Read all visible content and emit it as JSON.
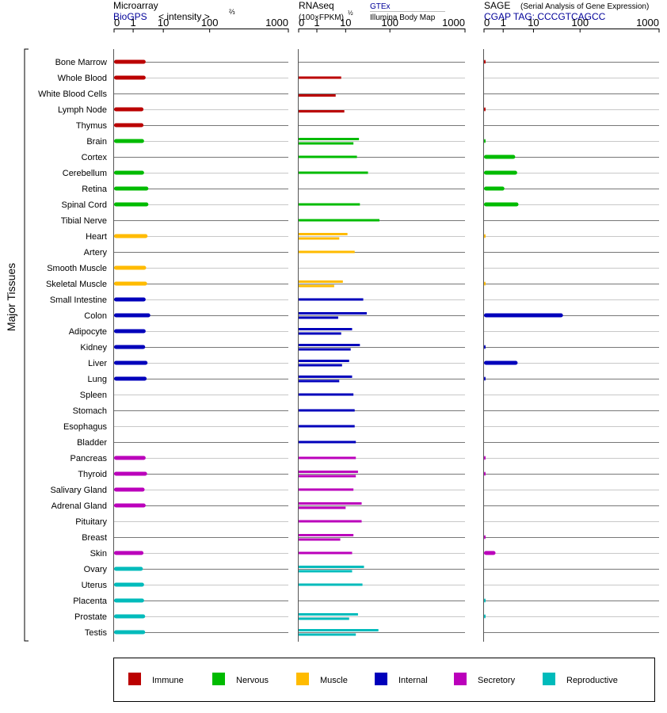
{
  "headers": {
    "microarray": {
      "title": "Microarray",
      "source": "BioGPS",
      "units_main": "< intensity >",
      "units_exp": "⅔"
    },
    "rnaseq": {
      "title": "RNAseq",
      "units_main": "(100×FPKM)",
      "units_exp": "½",
      "source1": "GTEx",
      "source2": "Illumina Body Map"
    },
    "sage": {
      "title": "SAGE",
      "subtitle": "(Serial Analysis of Gene Expression)",
      "tag": "CGAP  TAG: CCCGTCAGCC"
    }
  },
  "axis_ticks": [
    "0",
    "1",
    "10",
    "100",
    "1000"
  ],
  "axis_title": "Major Tissues",
  "categories": {
    "immune": {
      "label": "Immune",
      "color": "#bb0000"
    },
    "nervous": {
      "label": "Nervous",
      "color": "#00bb00"
    },
    "muscle": {
      "label": "Muscle",
      "color": "#ffbb00"
    },
    "internal": {
      "label": "Internal",
      "color": "#0000bb"
    },
    "secretory": {
      "label": "Secretory",
      "color": "#bb00bb"
    },
    "reproductive": {
      "label": "Reproductive",
      "color": "#00bbbb"
    }
  },
  "legend_order": [
    "immune",
    "nervous",
    "muscle",
    "internal",
    "secretory",
    "reproductive"
  ],
  "chart_data": {
    "type": "bar",
    "orientation": "horizontal",
    "scale": "log-like (0, 1, 10, 100, 1000)",
    "xlim": [
      0,
      1000
    ],
    "panels": [
      "Microarray (BioGPS)",
      "RNAseq (GTEx / Illumina Body Map)",
      "SAGE (CGAP)"
    ],
    "tissues": [
      {
        "name": "Bone Marrow",
        "cat": "immune",
        "micro": 2.6,
        "gtex": null,
        "ibm": null,
        "sage": 0.05
      },
      {
        "name": "Whole Blood",
        "cat": "immune",
        "micro": 2.6,
        "gtex": 7,
        "ibm": null,
        "sage": null
      },
      {
        "name": "White Blood Cells",
        "cat": "immune",
        "micro": null,
        "gtex": null,
        "ibm": 4.5,
        "sage": null
      },
      {
        "name": "Lymph Node",
        "cat": "immune",
        "micro": 2.2,
        "gtex": null,
        "ibm": 9,
        "sage": 0.05
      },
      {
        "name": "Thymus",
        "cat": "immune",
        "micro": 2.2,
        "gtex": null,
        "ibm": null,
        "sage": null
      },
      {
        "name": "Brain",
        "cat": "nervous",
        "micro": 2.3,
        "gtex": 20,
        "ibm": 15,
        "sage": 0.05
      },
      {
        "name": "Cortex",
        "cat": "nervous",
        "micro": null,
        "gtex": 18,
        "ibm": null,
        "sage": 2.5
      },
      {
        "name": "Cerebellum",
        "cat": "nervous",
        "micro": 2.3,
        "gtex": 32,
        "ibm": null,
        "sage": 2.9
      },
      {
        "name": "Retina",
        "cat": "nervous",
        "micro": 3.2,
        "gtex": null,
        "ibm": null,
        "sage": 1.1
      },
      {
        "name": "Spinal Cord",
        "cat": "nervous",
        "micro": 3.2,
        "gtex": 21,
        "ibm": null,
        "sage": 3.2
      },
      {
        "name": "Tibial Nerve",
        "cat": "nervous",
        "micro": null,
        "gtex": 58,
        "ibm": null,
        "sage": null
      },
      {
        "name": "Heart",
        "cat": "muscle",
        "micro": 3.0,
        "gtex": 11,
        "ibm": 6,
        "sage": 0.02
      },
      {
        "name": "Artery",
        "cat": "muscle",
        "micro": null,
        "gtex": 16,
        "ibm": null,
        "sage": null
      },
      {
        "name": "Smooth Muscle",
        "cat": "muscle",
        "micro": 2.7,
        "gtex": null,
        "ibm": null,
        "sage": null
      },
      {
        "name": "Skeletal Muscle",
        "cat": "muscle",
        "micro": 2.9,
        "gtex": 8,
        "ibm": 4,
        "sage": 0.02
      },
      {
        "name": "Small Intestine",
        "cat": "internal",
        "micro": 2.6,
        "gtex": 25,
        "ibm": null,
        "sage": null
      },
      {
        "name": "Colon",
        "cat": "internal",
        "micro": 3.7,
        "gtex": 30,
        "ibm": 5.5,
        "sage": 43
      },
      {
        "name": "Adipocyte",
        "cat": "internal",
        "micro": 2.6,
        "gtex": 14,
        "ibm": 7,
        "sage": null
      },
      {
        "name": "Kidney",
        "cat": "internal",
        "micro": 2.5,
        "gtex": 21,
        "ibm": 13,
        "sage": 0.05
      },
      {
        "name": "Liver",
        "cat": "internal",
        "micro": 3.0,
        "gtex": 12,
        "ibm": 7.5,
        "sage": 3.0
      },
      {
        "name": "Lung",
        "cat": "internal",
        "micro": 2.8,
        "gtex": 14,
        "ibm": 6,
        "sage": 0.05
      },
      {
        "name": "Spleen",
        "cat": "internal",
        "micro": null,
        "gtex": 15,
        "ibm": null,
        "sage": null
      },
      {
        "name": "Stomach",
        "cat": "internal",
        "micro": null,
        "gtex": 16,
        "ibm": null,
        "sage": null
      },
      {
        "name": "Esophagus",
        "cat": "internal",
        "micro": null,
        "gtex": 16,
        "ibm": null,
        "sage": null
      },
      {
        "name": "Bladder",
        "cat": "internal",
        "micro": null,
        "gtex": 17,
        "ibm": null,
        "sage": null
      },
      {
        "name": "Pancreas",
        "cat": "secretory",
        "micro": 2.6,
        "gtex": 17,
        "ibm": null,
        "sage": 0.05
      },
      {
        "name": "Thyroid",
        "cat": "secretory",
        "micro": 2.9,
        "gtex": 19,
        "ibm": 17,
        "sage": 0.05
      },
      {
        "name": "Salivary Gland",
        "cat": "secretory",
        "micro": 2.4,
        "gtex": 15,
        "ibm": null,
        "sage": null
      },
      {
        "name": "Adrenal Gland",
        "cat": "secretory",
        "micro": 2.6,
        "gtex": 23,
        "ibm": 10,
        "sage": null
      },
      {
        "name": "Pituitary",
        "cat": "secretory",
        "micro": null,
        "gtex": 23,
        "ibm": null,
        "sage": null
      },
      {
        "name": "Breast",
        "cat": "secretory",
        "micro": null,
        "gtex": 15,
        "ibm": 6.5,
        "sage": 0.05
      },
      {
        "name": "Skin",
        "cat": "secretory",
        "micro": 2.2,
        "gtex": 14,
        "ibm": null,
        "sage": 0.6
      },
      {
        "name": "Ovary",
        "cat": "reproductive",
        "micro": 2.1,
        "gtex": 26,
        "ibm": 14,
        "sage": null
      },
      {
        "name": "Uterus",
        "cat": "reproductive",
        "micro": 2.3,
        "gtex": 24,
        "ibm": null,
        "sage": null
      },
      {
        "name": "Placenta",
        "cat": "reproductive",
        "micro": 2.3,
        "gtex": null,
        "ibm": null,
        "sage": 0.05
      },
      {
        "name": "Prostate",
        "cat": "reproductive",
        "micro": 2.5,
        "gtex": 19,
        "ibm": 12,
        "sage": 0.05
      },
      {
        "name": "Testis",
        "cat": "reproductive",
        "micro": 2.5,
        "gtex": 55,
        "ibm": 17,
        "sage": null
      }
    ]
  }
}
